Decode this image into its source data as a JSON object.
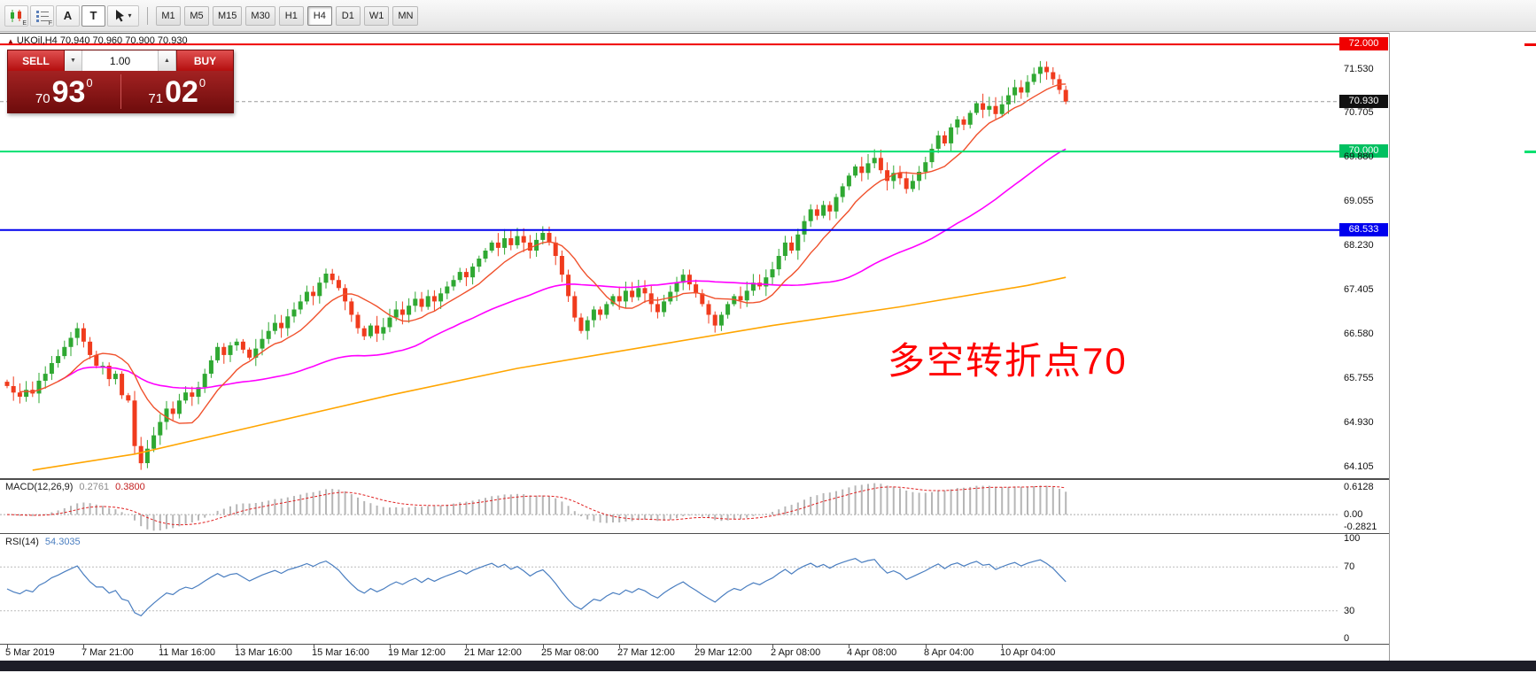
{
  "icons": {
    "caret_down": "▼",
    "caret_up": "▲",
    "dropdown_caret": "▾",
    "chart_marker": "▲"
  },
  "toolbar": {
    "icons": [
      {
        "name": "candlestick-chart-icon",
        "badge": "E"
      },
      {
        "name": "grid-icon",
        "badge": "F"
      },
      {
        "name": "text-label-icon",
        "glyph": "A"
      },
      {
        "name": "text-tool-icon",
        "glyph": "T"
      },
      {
        "name": "pointer-tool-icon"
      }
    ],
    "timeframes": [
      {
        "label": "M1"
      },
      {
        "label": "M5"
      },
      {
        "label": "M15"
      },
      {
        "label": "M30"
      },
      {
        "label": "H1"
      },
      {
        "label": "H4",
        "active": true
      },
      {
        "label": "D1"
      },
      {
        "label": "W1"
      },
      {
        "label": "MN"
      }
    ]
  },
  "trade_panel": {
    "sell_label": "SELL",
    "buy_label": "BUY",
    "volume": "1.00",
    "sell_price": {
      "prefix": "70",
      "big": "93",
      "sup": "0"
    },
    "buy_price": {
      "prefix": "71",
      "big": "02",
      "sup": "0"
    }
  },
  "chart": {
    "symbol_header": "UKOil,H4  70.940 70.960 70.900 70.930",
    "annotation": {
      "text": "多空转折点70",
      "color": "#ff0000"
    },
    "levels": [
      {
        "name": "resistance-72000",
        "price": 72.0,
        "label": "72.000",
        "color": "#f00000",
        "line": true,
        "width": 2,
        "edge_mark": true
      },
      {
        "name": "bid-price",
        "price": 70.93,
        "label": "70.930",
        "color": "#111111",
        "line": true,
        "dashed": true,
        "width": 1,
        "line_color": "#9a9a9a"
      },
      {
        "name": "pivot-70000",
        "price": 70.0,
        "label": "70.000",
        "color": "#00c060",
        "line": true,
        "width": 2,
        "line_color": "#00e070",
        "edge_mark": true
      },
      {
        "name": "support-68533",
        "price": 68.533,
        "label": "68.533",
        "color": "#0000ee",
        "line": true,
        "width": 2
      }
    ],
    "price_axis_ticks": [
      "71.530",
      "70.705",
      "69.880",
      "69.055",
      "68.230",
      "67.405",
      "66.580",
      "65.755",
      "64.930",
      "64.105"
    ]
  },
  "macd_panel": {
    "label": "MACD(12,26,9)",
    "value_main": "0.2761",
    "value_signal": "0.3800",
    "axis_labels": [
      "0.6128",
      "0.00",
      "-0.2821"
    ]
  },
  "rsi_panel": {
    "label": "RSI(14)",
    "value": "54.3035",
    "axis_labels": [
      "100",
      "70",
      "30",
      "0"
    ]
  },
  "time_axis": [
    {
      "index": 0,
      "text": "5 Mar 2019"
    },
    {
      "index": 12,
      "text": "7 Mar 21:00"
    },
    {
      "index": 24,
      "text": "11 Mar 16:00"
    },
    {
      "index": 36,
      "text": "13 Mar 16:00"
    },
    {
      "index": 48,
      "text": "15 Mar 16:00"
    },
    {
      "index": 60,
      "text": "19 Mar 12:00"
    },
    {
      "index": 72,
      "text": "21 Mar 12:00"
    },
    {
      "index": 84,
      "text": "25 Mar 08:00"
    },
    {
      "index": 96,
      "text": "27 Mar 12:00"
    },
    {
      "index": 108,
      "text": "29 Mar 12:00"
    },
    {
      "index": 120,
      "text": "2 Apr 08:00"
    },
    {
      "index": 132,
      "text": "4 Apr 08:00"
    },
    {
      "index": 144,
      "text": "8 Apr 04:00"
    },
    {
      "index": 156,
      "text": "10 Apr 04:00"
    }
  ],
  "chart_data": {
    "type": "candlestick",
    "symbol": "UKOil",
    "timeframe": "H4",
    "x_range": [
      "5 Mar 2019",
      "11 Apr 2019"
    ],
    "price_range": [
      63.9,
      72.2
    ],
    "colors": {
      "up": "#2fa832",
      "down": "#f03b1d"
    },
    "candles": {
      "first_open": 65.7,
      "closes": [
        65.62,
        65.5,
        65.42,
        65.55,
        65.48,
        65.72,
        65.85,
        66.05,
        66.18,
        66.35,
        66.52,
        66.7,
        66.45,
        66.2,
        66.0,
        66.0,
        65.75,
        65.85,
        65.45,
        65.35,
        64.5,
        64.18,
        64.45,
        64.7,
        64.95,
        65.2,
        65.1,
        65.35,
        65.5,
        65.42,
        65.6,
        65.85,
        66.1,
        66.35,
        66.2,
        66.38,
        66.45,
        66.3,
        66.15,
        66.32,
        66.5,
        66.65,
        66.8,
        66.7,
        66.92,
        67.05,
        67.2,
        67.38,
        67.3,
        67.55,
        67.72,
        67.6,
        67.45,
        67.2,
        66.95,
        66.7,
        66.55,
        66.75,
        66.6,
        66.72,
        66.9,
        67.05,
        66.95,
        67.12,
        67.25,
        67.1,
        67.3,
        67.2,
        67.35,
        67.48,
        67.6,
        67.75,
        67.65,
        67.85,
        68.0,
        68.15,
        68.3,
        68.2,
        68.38,
        68.25,
        68.42,
        68.3,
        68.15,
        68.35,
        68.48,
        68.3,
        68.05,
        67.7,
        67.3,
        66.9,
        66.65,
        66.85,
        67.05,
        66.95,
        67.15,
        67.3,
        67.2,
        67.4,
        67.28,
        67.45,
        67.35,
        67.15,
        67.0,
        67.2,
        67.38,
        67.55,
        67.7,
        67.52,
        67.35,
        67.15,
        66.95,
        66.75,
        66.95,
        67.15,
        67.3,
        67.22,
        67.4,
        67.55,
        67.48,
        67.65,
        67.8,
        68.05,
        68.3,
        68.15,
        68.45,
        68.7,
        68.92,
        68.8,
        69.0,
        68.88,
        69.15,
        69.35,
        69.55,
        69.72,
        69.6,
        69.78,
        69.88,
        69.65,
        69.45,
        69.6,
        69.5,
        69.3,
        69.45,
        69.62,
        69.8,
        70.05,
        70.3,
        70.15,
        70.45,
        70.6,
        70.5,
        70.72,
        70.9,
        70.78,
        70.85,
        70.7,
        70.88,
        71.05,
        71.2,
        71.1,
        71.3,
        71.45,
        71.58,
        71.48,
        71.35,
        71.15,
        70.93
      ]
    },
    "moving_averages": [
      {
        "name": "fast-ma",
        "type": "sma",
        "period": 10,
        "color": "#f0512c"
      },
      {
        "name": "mid-ma",
        "type": "sma",
        "period": 45,
        "color": "#ff00ff"
      },
      {
        "name": "slow-ma",
        "color": "#ffa500",
        "points": [
          [
            4,
            64.05
          ],
          [
            20,
            64.35
          ],
          [
            40,
            64.9
          ],
          [
            60,
            65.45
          ],
          [
            80,
            65.95
          ],
          [
            100,
            66.35
          ],
          [
            120,
            66.75
          ],
          [
            140,
            67.1
          ],
          [
            160,
            67.5
          ],
          [
            166,
            67.65
          ]
        ]
      }
    ],
    "indicators": {
      "macd": {
        "fast": 12,
        "slow": 26,
        "signal": 9,
        "histogram_color": "#b6b6b6",
        "signal_color": "#e02020",
        "current": [
          0.2761,
          0.38
        ]
      },
      "rsi": {
        "period": 14,
        "color": "#4a7ec0",
        "levels": [
          70,
          30
        ],
        "current": 54.3035
      }
    }
  }
}
